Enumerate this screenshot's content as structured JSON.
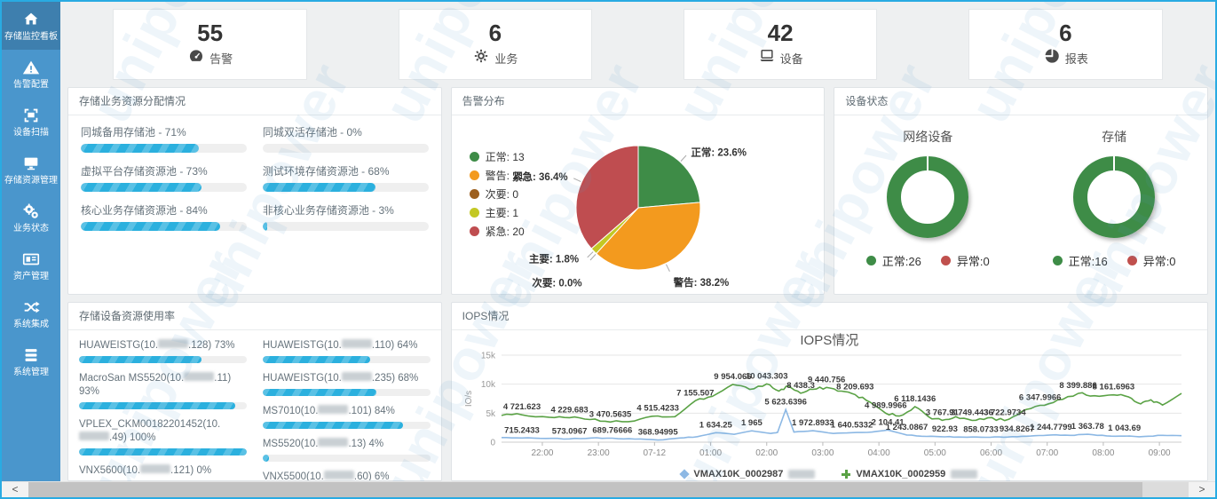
{
  "watermark": "unipower",
  "sidebar": {
    "items": [
      {
        "key": "dashboard",
        "icon": "home-icon",
        "label": "存储监控看板",
        "active": true
      },
      {
        "key": "alarm-config",
        "icon": "alert-triangle-icon",
        "label": "告警配置",
        "active": false
      },
      {
        "key": "device-scan",
        "icon": "scan-icon",
        "label": "设备扫描",
        "active": false
      },
      {
        "key": "storage-resource",
        "icon": "monitor-icon",
        "label": "存储资源管理",
        "active": false
      },
      {
        "key": "business-status",
        "icon": "gears-icon",
        "label": "业务状态",
        "active": false
      },
      {
        "key": "asset-mgmt",
        "icon": "card-icon",
        "label": "资产管理",
        "active": false
      },
      {
        "key": "system-integration",
        "icon": "shuffle-icon",
        "label": "系统集成",
        "active": false
      },
      {
        "key": "system-mgmt",
        "icon": "server-list-icon",
        "label": "系统管理",
        "active": false
      }
    ]
  },
  "stats": [
    {
      "value": "55",
      "label": "告警"
    },
    {
      "value": "6",
      "label": "业务"
    },
    {
      "value": "42",
      "label": "设备"
    },
    {
      "value": "6",
      "label": "报表"
    }
  ],
  "panels": {
    "allocation": {
      "title": "存储业务资源分配情况",
      "items": [
        {
          "label": "同城备用存储池 - 71%",
          "pct": 71
        },
        {
          "label": "同城双活存储池 - 0%",
          "pct": 0
        },
        {
          "label": "虚拟平台存储资源池 - 73%",
          "pct": 73
        },
        {
          "label": "测试环境存储资源池 - 68%",
          "pct": 68
        },
        {
          "label": "核心业务存储资源池 - 84%",
          "pct": 84
        },
        {
          "label": "非核心业务存储资源池 - 3%",
          "pct": 3
        }
      ]
    },
    "alarm": {
      "title": "告警分布"
    },
    "device_status": {
      "title": "设备状态"
    },
    "usage": {
      "title": "存储设备资源使用率",
      "items": [
        {
          "pre": "HUAWEISTG(10.",
          "post": ".128) 73%",
          "pct": 73
        },
        {
          "pre": "HUAWEISTG(10.",
          "post": ".110) 64%",
          "pct": 64
        },
        {
          "pre": "MacroSan MS5520(10.",
          "post": ".11) 93%",
          "pct": 93
        },
        {
          "pre": "HUAWEISTG(10.",
          "post": ".235) 68%",
          "pct": 68
        },
        {
          "pre": "VPLEX_CKM00182201452(10.",
          "post": ".49) 100%",
          "pct": 100
        },
        {
          "pre": "MS7010(10.",
          "post": ".101) 84%",
          "pct": 84
        },
        {
          "pre": "MS5520(10.",
          "post": ".13) 4%",
          "pct": 4
        },
        {
          "pre": "VNX5600(10.",
          "post": ".121) 0%",
          "pct": 0
        },
        {
          "pre": "VNX5500(10.",
          "post": ".60) 6%",
          "pct": 6
        }
      ],
      "column_split": [
        [
          0,
          2,
          4,
          7
        ],
        [
          1,
          3,
          5,
          6,
          8
        ]
      ]
    },
    "iops": {
      "title": "IOPS情况"
    }
  },
  "chart_data": [
    {
      "type": "pie",
      "title": "告警分布",
      "labels": [
        "正常",
        "警告",
        "次要",
        "主要",
        "紧急"
      ],
      "values": [
        13,
        21,
        0,
        1,
        20
      ],
      "percents": [
        23.6,
        38.2,
        0.0,
        1.8,
        36.4
      ],
      "slice_labels": [
        "正常: 23.6%",
        "警告: 38.2%",
        "次要: 0.0%",
        "主要: 1.8%",
        "紧急: 36.4%"
      ],
      "colors": [
        "#3e8c47",
        "#f39a1e",
        "#9c5f1f",
        "#c3c824",
        "#bf4d50"
      ],
      "legend": [
        "正常: 13",
        "警告: 21",
        "次要: 0",
        "主要: 1",
        "紧急: 20"
      ],
      "legend_position": "left",
      "label_adjust": [
        [
          2,
          0
        ],
        [
          2,
          8
        ],
        [
          -6,
          22
        ],
        [
          -6,
          -2
        ],
        [
          -2,
          0
        ]
      ]
    },
    {
      "type": "pie",
      "subtype": "donut",
      "title": "网络设备",
      "labels": [
        "正常",
        "异常"
      ],
      "values": [
        26,
        0
      ],
      "colors": [
        "#3e8c47",
        "#c0504d"
      ],
      "legend": [
        "正常:26",
        "异常:0"
      ]
    },
    {
      "type": "pie",
      "subtype": "donut",
      "title": "存储",
      "labels": [
        "正常",
        "异常"
      ],
      "values": [
        16,
        0
      ],
      "colors": [
        "#3e8c47",
        "#c0504d"
      ],
      "legend": [
        "正常:16",
        "异常:0"
      ]
    },
    {
      "type": "line",
      "title": "IOPS情况",
      "ylabel": "IO/s",
      "ylim": [
        0,
        15000
      ],
      "yticks": [
        {
          "v": 0,
          "label": "0"
        },
        {
          "v": 5000,
          "label": "5k"
        },
        {
          "v": 10000,
          "label": "10k"
        },
        {
          "v": 15000,
          "label": "15k"
        }
      ],
      "xticks": [
        "22:00",
        "23:00",
        "07-12",
        "01:00",
        "02:00",
        "03:00",
        "04:00",
        "05:00",
        "06:00",
        "07:00",
        "08:00",
        "09:00"
      ],
      "grid": true,
      "legend_position": "bottom",
      "series": [
        {
          "name_visible": "VMAX10K_0002987",
          "name_redacted": true,
          "color": "#8cb8e4",
          "symbol": "diamond",
          "noise": 55,
          "points": [
            [
              0.0,
              800
            ],
            [
              0.03,
              715.2433,
              "715.2433"
            ],
            [
              0.065,
              640
            ],
            [
              0.1,
              573.0967,
              "573.0967"
            ],
            [
              0.132,
              720
            ],
            [
              0.163,
              689.76666,
              "689.76666"
            ],
            [
              0.196,
              540
            ],
            [
              0.23,
              368.94995,
              "368.94995"
            ],
            [
              0.262,
              720
            ],
            [
              0.288,
              950
            ],
            [
              0.315,
              1634.25,
              "1 634.25"
            ],
            [
              0.342,
              1350
            ],
            [
              0.368,
              1965,
              "1 965"
            ],
            [
              0.396,
              1500
            ],
            [
              0.406,
              1700
            ],
            [
              0.418,
              5623.6396,
              "5 623.6396"
            ],
            [
              0.43,
              1750
            ],
            [
              0.458,
              1972.8933,
              "1 972.8933"
            ],
            [
              0.488,
              1500
            ],
            [
              0.515,
              1640.5332,
              "1 640.5332"
            ],
            [
              0.545,
              1750
            ],
            [
              0.568,
              2104.41,
              "2 104.41"
            ],
            [
              0.596,
              1243.0867,
              "1 243.0867"
            ],
            [
              0.625,
              1000
            ],
            [
              0.652,
              922.93,
              "922.93"
            ],
            [
              0.678,
              880
            ],
            [
              0.705,
              858.0733,
              "858.0733"
            ],
            [
              0.732,
              900
            ],
            [
              0.758,
              934.8267,
              "934.8267"
            ],
            [
              0.785,
              1120
            ],
            [
              0.808,
              1244.7799,
              "1 244.7799"
            ],
            [
              0.836,
              1180
            ],
            [
              0.862,
              1363.78,
              "1 363.78"
            ],
            [
              0.89,
              1080
            ],
            [
              0.916,
              1043.69,
              "1 043.69"
            ],
            [
              0.945,
              980
            ],
            [
              0.972,
              1180
            ],
            [
              1.0,
              1120
            ]
          ]
        },
        {
          "name_visible": "VMAX10K_0002959",
          "name_redacted": true,
          "color": "#5aa245",
          "symbol": "plus",
          "noise": 230,
          "points": [
            [
              0.0,
              4600
            ],
            [
              0.03,
              4721.623,
              "4 721.623"
            ],
            [
              0.07,
              4300
            ],
            [
              0.1,
              4229.683,
              "4 229.683"
            ],
            [
              0.13,
              3900
            ],
            [
              0.16,
              3470.5635,
              "3 470.5635"
            ],
            [
              0.195,
              3650
            ],
            [
              0.23,
              4515.4233,
              "4 515.4233"
            ],
            [
              0.255,
              4400
            ],
            [
              0.285,
              7155.507,
              "7 155.507"
            ],
            [
              0.31,
              7900
            ],
            [
              0.34,
              9954.066,
              "9 954.066"
            ],
            [
              0.365,
              9100
            ],
            [
              0.39,
              10043.303,
              "10 043.303"
            ],
            [
              0.408,
              8800
            ],
            [
              0.422,
              9700
            ],
            [
              0.44,
              8438.3,
              "8 438.3"
            ],
            [
              0.458,
              9100
            ],
            [
              0.478,
              9440.756,
              "9 440.756"
            ],
            [
              0.5,
              8800
            ],
            [
              0.52,
              8209.693,
              "8 209.693"
            ],
            [
              0.542,
              6900
            ],
            [
              0.565,
              4989.9966,
              "4 989.9966"
            ],
            [
              0.585,
              4500
            ],
            [
              0.608,
              6118.1436,
              "6 118.1436"
            ],
            [
              0.628,
              4400
            ],
            [
              0.648,
              3767.91,
              "3 767.91"
            ],
            [
              0.668,
              4400
            ],
            [
              0.692,
              3749.4436,
              "3 749.4436"
            ],
            [
              0.715,
              4200
            ],
            [
              0.74,
              3722.9734,
              "3 722.9734"
            ],
            [
              0.765,
              5300
            ],
            [
              0.792,
              6347.9966,
              "6 347.9966"
            ],
            [
              0.818,
              7300
            ],
            [
              0.848,
              8399.886,
              "8 399.886"
            ],
            [
              0.872,
              8000
            ],
            [
              0.9,
              8161.6963,
              "8 161.6963"
            ],
            [
              0.922,
              7800
            ],
            [
              0.94,
              6600
            ],
            [
              0.955,
              7300
            ],
            [
              0.972,
              6400
            ],
            [
              1.0,
              8400
            ]
          ]
        }
      ]
    }
  ],
  "scrollbar": {
    "left_arrow": "<",
    "right_arrow": ">"
  }
}
